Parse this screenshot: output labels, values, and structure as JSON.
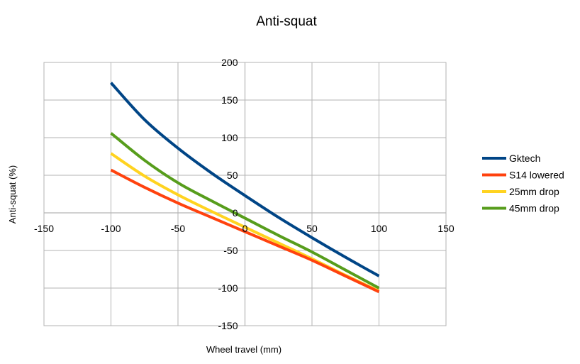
{
  "chart_data": {
    "type": "line",
    "title": "Anti-squat",
    "xlabel": "Wheel travel (mm)",
    "ylabel": "Anti-squat (%)",
    "xlim": [
      -150,
      150
    ],
    "ylim": [
      -150,
      200
    ],
    "xticks": [
      -150,
      -100,
      -50,
      0,
      50,
      100,
      150
    ],
    "yticks": [
      -150,
      -100,
      -50,
      0,
      50,
      100,
      150,
      200
    ],
    "grid": true,
    "legend_position": "right",
    "series": [
      {
        "name": "Gktech",
        "color": "#004586",
        "x": [
          -100,
          -75,
          -50,
          -25,
          0,
          25,
          50,
          75,
          100
        ],
        "y": [
          173,
          124,
          86,
          53,
          23,
          -6,
          -33,
          -59,
          -84
        ]
      },
      {
        "name": "S14 lowered",
        "color": "#ff420e",
        "x": [
          -100,
          -75,
          -50,
          -25,
          0,
          25,
          50,
          75,
          100
        ],
        "y": [
          57,
          34,
          13,
          -6,
          -25,
          -44,
          -63,
          -84,
          -105
        ]
      },
      {
        "name": "25mm drop",
        "color": "#ffd320",
        "x": [
          -100,
          -75,
          -50,
          -25,
          0,
          25,
          50,
          75,
          100
        ],
        "y": [
          79,
          49,
          24,
          2,
          -19,
          -40,
          -61,
          -83,
          -104
        ]
      },
      {
        "name": "45mm drop",
        "color": "#579d1c",
        "x": [
          -100,
          -75,
          -50,
          -25,
          0,
          25,
          50,
          75,
          100
        ],
        "y": [
          106,
          70,
          40,
          16,
          -7,
          -30,
          -52,
          -76,
          -100
        ]
      }
    ]
  }
}
